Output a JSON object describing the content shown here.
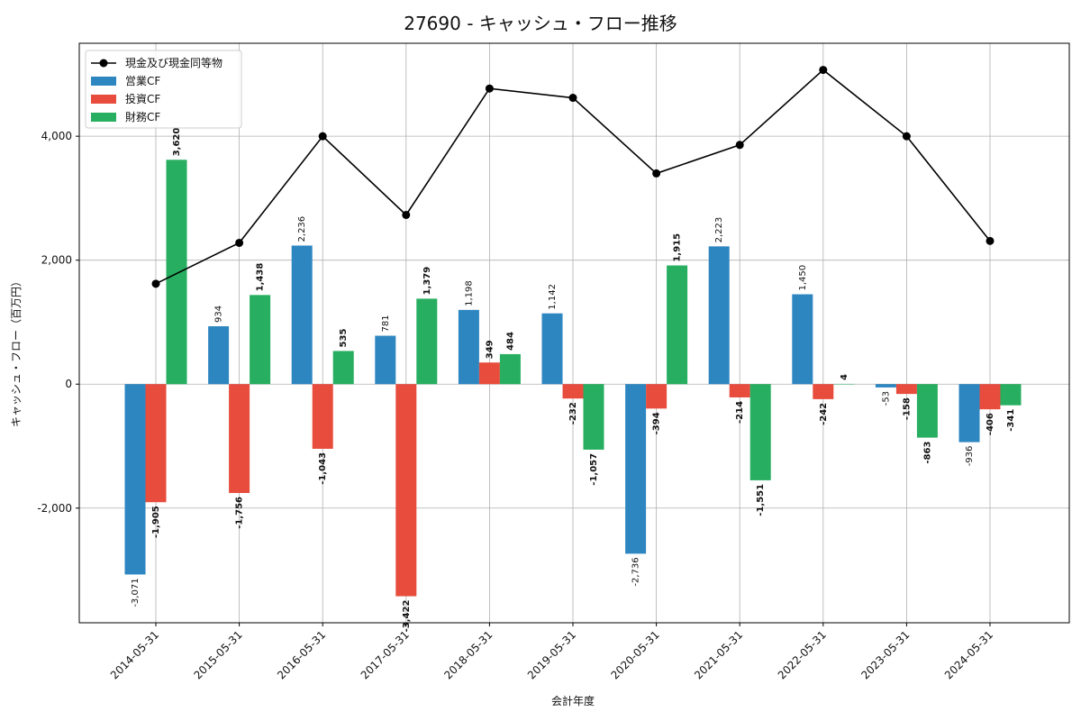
{
  "chart_data": {
    "type": "bar",
    "title": "27690 - キャッシュ・フロー推移",
    "xlabel": "会計年度",
    "ylabel": "キャッシュ・フロー（百万円）",
    "ylim": [
      -3850,
      5500
    ],
    "yticks": [
      -2000,
      0,
      2000,
      4000
    ],
    "ytick_labels": [
      "-2,000",
      "0",
      "2,000",
      "4,000"
    ],
    "grid": true,
    "legend_position": "top-left",
    "categories": [
      "2014-05-31",
      "2015-05-31",
      "2016-05-31",
      "2017-05-31",
      "2018-05-31",
      "2019-05-31",
      "2020-05-31",
      "2021-05-31",
      "2022-05-31",
      "2023-05-31",
      "2024-05-31"
    ],
    "series": [
      {
        "name": "営業CF",
        "kind": "bar",
        "color": "#2e86c1",
        "values": [
          -3071,
          934,
          2236,
          781,
          1198,
          1142,
          -2736,
          2223,
          1450,
          -53,
          -936
        ],
        "labels": [
          "-3,071",
          "934",
          "2,236",
          "781",
          "1,198",
          "1,142",
          "-2,736",
          "2,223",
          "1,450",
          "-53",
          "-936"
        ]
      },
      {
        "name": "投資CF",
        "kind": "bar",
        "color": "#e74c3c",
        "values": [
          -1905,
          -1756,
          -1043,
          -3422,
          349,
          -232,
          -394,
          -214,
          -242,
          -158,
          -406
        ],
        "labels": [
          "-1,905",
          "-1,756",
          "-1,043",
          "-3,422",
          "349",
          "-232",
          "-394",
          "-214",
          "-242",
          "-158",
          "-406"
        ]
      },
      {
        "name": "財務CF",
        "kind": "bar",
        "color": "#27ae60",
        "values": [
          3620,
          1438,
          535,
          1379,
          484,
          -1057,
          1915,
          -1551,
          4,
          -863,
          -341
        ],
        "labels": [
          "3,620",
          "1,438",
          "535",
          "1,379",
          "484",
          "-1,057",
          "1,915",
          "-1,551",
          "4",
          "-863",
          "-341"
        ]
      },
      {
        "name": "現金及び現金同等物",
        "kind": "line",
        "color": "#000000",
        "values": [
          1620,
          2280,
          4000,
          2730,
          4770,
          4620,
          3400,
          3860,
          5070,
          4000,
          2310
        ]
      }
    ]
  }
}
